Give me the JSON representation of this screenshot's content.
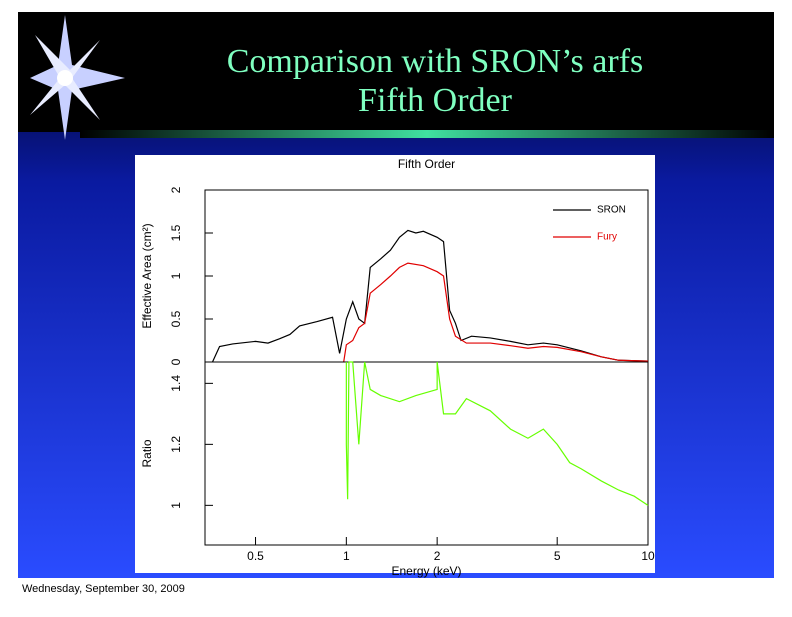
{
  "slide": {
    "title": [
      "Comparison with SRON’s arfs",
      "Fifth Order"
    ],
    "footer": "Wednesday, September 30, 2009"
  },
  "chart_data": [
    {
      "type": "line",
      "title": "Fifth Order",
      "y_label": "Effective Area (cm²)",
      "xscale": "log",
      "xlim": [
        0.34,
        10
      ],
      "ylim": [
        0,
        2
      ],
      "yticks": [
        0,
        0.5,
        1,
        1.5,
        2
      ],
      "legend": "upper right",
      "series": [
        {
          "name": "SRON",
          "color": "#000000",
          "x": [
            0.36,
            0.38,
            0.42,
            0.5,
            0.55,
            0.6,
            0.65,
            0.7,
            0.8,
            0.9,
            0.95,
            1.0,
            1.05,
            1.1,
            1.15,
            1.2,
            1.3,
            1.4,
            1.5,
            1.6,
            1.7,
            1.8,
            2.0,
            2.1,
            2.2,
            2.3,
            2.4,
            2.6,
            3,
            3.5,
            4,
            4.5,
            5,
            6,
            7,
            8,
            10
          ],
          "values": [
            0,
            0.18,
            0.21,
            0.24,
            0.22,
            0.27,
            0.32,
            0.42,
            0.47,
            0.52,
            0.1,
            0.5,
            0.7,
            0.5,
            0.45,
            1.1,
            1.2,
            1.3,
            1.45,
            1.53,
            1.5,
            1.52,
            1.45,
            1.4,
            0.6,
            0.45,
            0.25,
            0.3,
            0.28,
            0.24,
            0.2,
            0.22,
            0.2,
            0.13,
            0.06,
            0.02,
            0.01
          ]
        },
        {
          "name": "Fury",
          "color": "#e00000",
          "x": [
            0.98,
            1.0,
            1.05,
            1.1,
            1.15,
            1.2,
            1.3,
            1.4,
            1.5,
            1.6,
            1.8,
            2.0,
            2.1,
            2.2,
            2.3,
            2.5,
            3,
            3.5,
            4,
            4.5,
            5,
            6,
            7,
            8,
            10
          ],
          "values": [
            0,
            0.2,
            0.25,
            0.4,
            0.45,
            0.8,
            0.9,
            1.0,
            1.1,
            1.15,
            1.12,
            1.05,
            1.0,
            0.5,
            0.3,
            0.22,
            0.22,
            0.19,
            0.16,
            0.18,
            0.17,
            0.12,
            0.06,
            0.02,
            0.01
          ]
        }
      ]
    },
    {
      "type": "line",
      "x_label": "Energy (keV)",
      "y_label": "Ratio",
      "xscale": "log",
      "xlim": [
        0.34,
        10
      ],
      "ylim": [
        0.87,
        1.47
      ],
      "xticks": [
        0.5,
        1,
        2,
        5,
        10
      ],
      "yticks": [
        1,
        1.2,
        1.4
      ],
      "series": [
        {
          "color": "#66ff00",
          "x": [
            1.0,
            1.0,
            1.01,
            1.02,
            1.05,
            1.1,
            1.15,
            1.2,
            1.3,
            1.5,
            1.7,
            2.0,
            2.0,
            2.1,
            2.3,
            2.5,
            3,
            3.5,
            4,
            4.5,
            5,
            5.5,
            6,
            7,
            8,
            9,
            10
          ],
          "values": [
            1.47,
            1.2,
            1.02,
            1.47,
            1.47,
            1.2,
            1.47,
            1.38,
            1.36,
            1.34,
            1.36,
            1.38,
            1.47,
            1.3,
            1.3,
            1.35,
            1.31,
            1.25,
            1.22,
            1.25,
            1.2,
            1.14,
            1.12,
            1.08,
            1.05,
            1.03,
            1.0
          ]
        }
      ]
    }
  ]
}
